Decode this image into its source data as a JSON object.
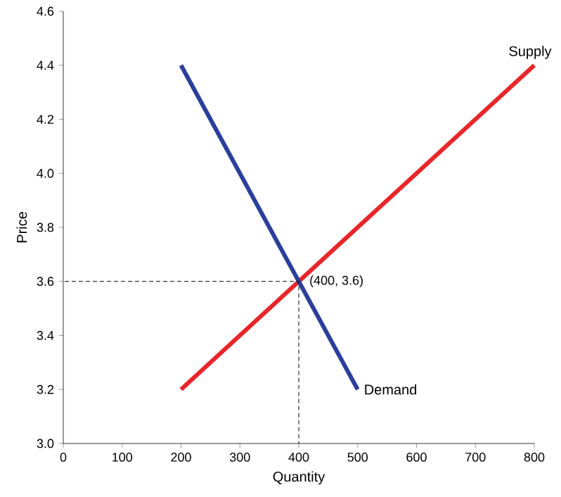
{
  "chart_data": {
    "type": "line",
    "xlabel": "Quantity",
    "ylabel": "Price",
    "xlim": [
      0,
      800
    ],
    "ylim": [
      3.0,
      4.6
    ],
    "xticks": [
      0,
      100,
      200,
      300,
      400,
      500,
      600,
      700,
      800
    ],
    "yticks": [
      {
        "value": 3.0,
        "label": "3.0"
      },
      {
        "value": 3.2,
        "label": "3.2"
      },
      {
        "value": 3.4,
        "label": "3.4"
      },
      {
        "value": 3.6,
        "label": "3.6"
      },
      {
        "value": 3.8,
        "label": "3.8"
      },
      {
        "value": 4.0,
        "label": "4.0"
      },
      {
        "value": 4.2,
        "label": "4.2"
      },
      {
        "value": 4.4,
        "label": "4.4"
      },
      {
        "value": 4.6,
        "label": "4.6"
      }
    ],
    "series": [
      {
        "name": "Supply",
        "color": "#e8262a",
        "x": [
          200,
          800
        ],
        "values": [
          3.2,
          4.4
        ],
        "line_style": "solid"
      },
      {
        "name": "Demand",
        "color": "#2b3f9a",
        "x": [
          200,
          500
        ],
        "values": [
          4.4,
          3.2
        ],
        "line_style": "solid"
      },
      {
        "color": "#000000",
        "x": [
          0,
          400
        ],
        "values": [
          3.6,
          3.6
        ],
        "line_style": "dashed"
      },
      {
        "color": "#000000",
        "x": [
          400,
          400
        ],
        "values": [
          3.0,
          3.6
        ],
        "line_style": "dashed"
      }
    ],
    "annotations": [
      {
        "text": "(400, 3.6)",
        "x": 400,
        "y": 3.6
      }
    ]
  }
}
